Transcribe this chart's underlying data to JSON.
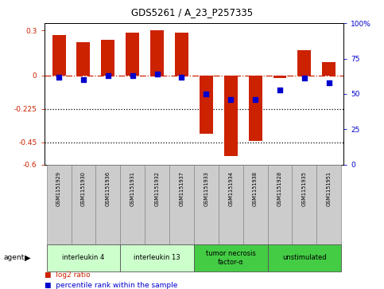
{
  "title": "GDS5261 / A_23_P257335",
  "samples": [
    "GSM1151929",
    "GSM1151930",
    "GSM1151936",
    "GSM1151931",
    "GSM1151932",
    "GSM1151937",
    "GSM1151933",
    "GSM1151934",
    "GSM1151938",
    "GSM1151928",
    "GSM1151935",
    "GSM1151951"
  ],
  "log2_ratio": [
    0.27,
    0.22,
    0.24,
    0.285,
    0.3,
    0.285,
    -0.39,
    -0.54,
    -0.44,
    -0.02,
    0.17,
    0.09
  ],
  "percentile_rank": [
    62,
    60,
    63,
    63,
    64,
    62,
    50,
    46,
    46,
    53,
    61,
    58
  ],
  "bar_color": "#cc2200",
  "dot_color": "#0000cc",
  "groups": [
    {
      "label": "interleukin 4",
      "start": 0,
      "end": 2,
      "color": "#ccffcc"
    },
    {
      "label": "interleukin 13",
      "start": 3,
      "end": 5,
      "color": "#ccffcc"
    },
    {
      "label": "tumor necrosis\nfactor-α",
      "start": 6,
      "end": 8,
      "color": "#44cc44"
    },
    {
      "label": "unstimulated",
      "start": 9,
      "end": 11,
      "color": "#44cc44"
    }
  ],
  "ylim_left": [
    -0.6,
    0.35
  ],
  "ylim_right": [
    0,
    100
  ],
  "yticks_left": [
    -0.6,
    -0.45,
    -0.225,
    0,
    0.3
  ],
  "yticks_right": [
    0,
    25,
    50,
    75,
    100
  ],
  "ytick_labels_left": [
    "-0.6",
    "-0.45",
    "-0.225",
    "0",
    "0.3"
  ],
  "ytick_labels_right": [
    "0",
    "25",
    "50",
    "75",
    "100%"
  ],
  "hlines": [
    -0.225,
    -0.45
  ],
  "zero_line": 0.0,
  "background_color": "#ffffff",
  "plot_bg": "#ffffff",
  "sample_box_color": "#cccccc",
  "agent_label": "agent"
}
